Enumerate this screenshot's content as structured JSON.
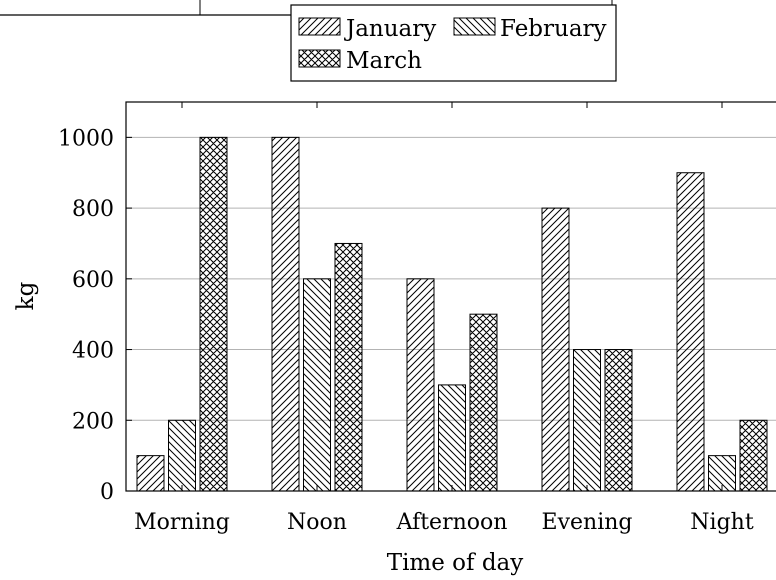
{
  "chart_data": {
    "type": "bar",
    "title": "",
    "xlabel": "Time of day",
    "ylabel": "kg",
    "categories": [
      "Morning",
      "Noon",
      "Afternoon",
      "Evening",
      "Night"
    ],
    "series": [
      {
        "name": "January",
        "values": [
          100,
          1000,
          600,
          800,
          900
        ],
        "pattern": "forward-hatch"
      },
      {
        "name": "February",
        "values": [
          200,
          600,
          300,
          400,
          100
        ],
        "pattern": "back-hatch"
      },
      {
        "name": "March",
        "values": [
          1000,
          700,
          500,
          400,
          200
        ],
        "pattern": "crosshatch"
      }
    ],
    "ylim": [
      0,
      1100
    ],
    "yticks": [
      0,
      200,
      400,
      600,
      800,
      1000
    ],
    "grid": "horizontal",
    "legend": "top-center",
    "colors": {
      "bar_fill": "#ffffff",
      "stroke": "#000000",
      "grid": "#b3b3b3"
    }
  }
}
